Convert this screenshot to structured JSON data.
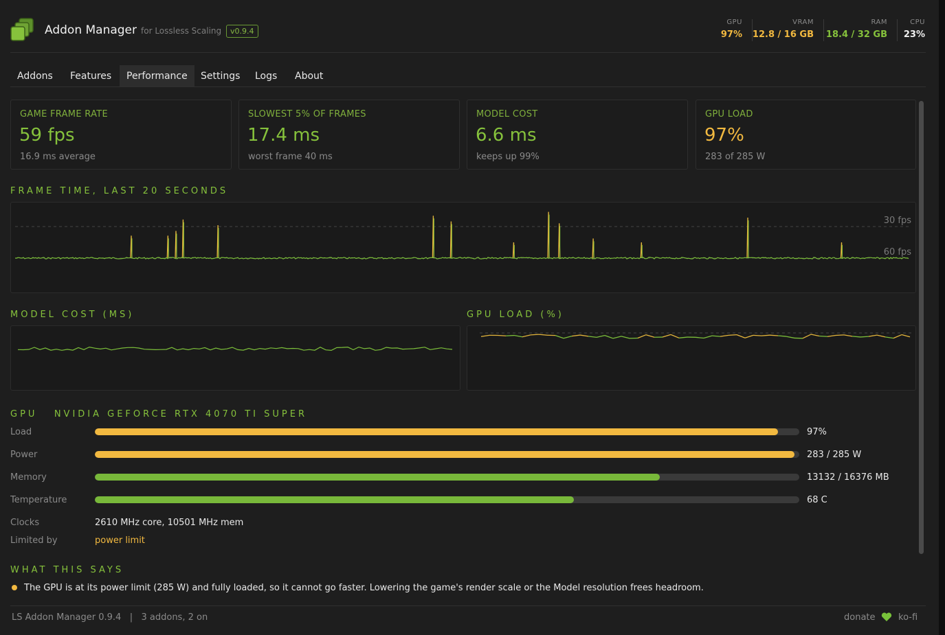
{
  "app": {
    "title": "Addon Manager",
    "subtitle": "for Lossless Scaling",
    "version": "v0.9.4"
  },
  "header_stats": [
    {
      "label": "GPU",
      "value": "97%",
      "color": "#f2b940"
    },
    {
      "label": "VRAM",
      "value": "12.8 / 16 GB",
      "color": "#f2b940"
    },
    {
      "label": "RAM",
      "value": "18.4 / 32 GB",
      "color": "#86c23c"
    },
    {
      "label": "CPU",
      "value": "23%",
      "color": "#f0f0f0"
    }
  ],
  "tabs": [
    {
      "label": "Addons",
      "active": false
    },
    {
      "label": "Features",
      "active": false
    },
    {
      "label": "Performance",
      "active": true
    },
    {
      "label": "Settings",
      "active": false
    },
    {
      "label": "Logs",
      "active": false
    },
    {
      "label": "About",
      "active": false
    }
  ],
  "cards": [
    {
      "title": "GAME FRAME RATE",
      "value": "59 fps",
      "sub": "16.9 ms average",
      "value_color": "#86c23c"
    },
    {
      "title": "SLOWEST 5% OF FRAMES",
      "value": "17.4 ms",
      "sub": "worst frame 40 ms",
      "value_color": "#86c23c"
    },
    {
      "title": "MODEL COST",
      "value": "6.6 ms",
      "sub": "keeps up 99%",
      "value_color": "#86c23c"
    },
    {
      "title": "GPU LOAD",
      "value": "97%",
      "sub": "283 of 285 W",
      "value_color": "#f2b940"
    }
  ],
  "frame_time": {
    "title": "FRAME TIME, LAST 20 SECONDS",
    "ref_30": "30 fps",
    "ref_60": "60 fps",
    "spikes": [
      {
        "t": 0.13,
        "ms": 28.5
      },
      {
        "t": 0.171,
        "ms": 28.5
      },
      {
        "t": 0.18,
        "ms": 31
      },
      {
        "t": 0.188,
        "ms": 37
      },
      {
        "t": 0.227,
        "ms": 34
      },
      {
        "t": 0.468,
        "ms": 39
      },
      {
        "t": 0.488,
        "ms": 36
      },
      {
        "t": 0.558,
        "ms": 25
      },
      {
        "t": 0.597,
        "ms": 41
      },
      {
        "t": 0.609,
        "ms": 35
      },
      {
        "t": 0.647,
        "ms": 27
      },
      {
        "t": 0.701,
        "ms": 25
      },
      {
        "t": 0.82,
        "ms": 38
      },
      {
        "t": 0.925,
        "ms": 25
      }
    ]
  },
  "model_cost": {
    "title": "MODEL COST (MS)"
  },
  "gpu_load_chart": {
    "title": "GPU LOAD (%)"
  },
  "gpu": {
    "section_title": "GPU   NVIDIA GEFORCE RTX 4070 TI SUPER",
    "rows": [
      {
        "label": "Load",
        "value": "97%",
        "fraction": 0.97,
        "color": "#f2b940"
      },
      {
        "label": "Power",
        "value": "283 / 285 W",
        "fraction": 0.993,
        "color": "#f2b940"
      },
      {
        "label": "Memory",
        "value": "13132 / 16376 MB",
        "fraction": 0.802,
        "color": "#78b83a"
      },
      {
        "label": "Temperature",
        "value": "68 C",
        "fraction": 0.68,
        "color": "#78b83a"
      }
    ],
    "clocks_label": "Clocks",
    "clocks_value": "2610 MHz core, 10501 MHz mem",
    "limited_label": "Limited by",
    "limited_value": "power limit"
  },
  "summary": {
    "title": "WHAT THIS SAYS",
    "text": "The GPU is at its power limit (285 W) and fully loaded, so it cannot go faster. Lowering the game's render scale or the Model resolution frees headroom."
  },
  "footer": {
    "left": "LS Addon Manager 0.9.4   |   3 addons, 2 on",
    "donate": "donate",
    "kofi": "ko-fi"
  }
}
